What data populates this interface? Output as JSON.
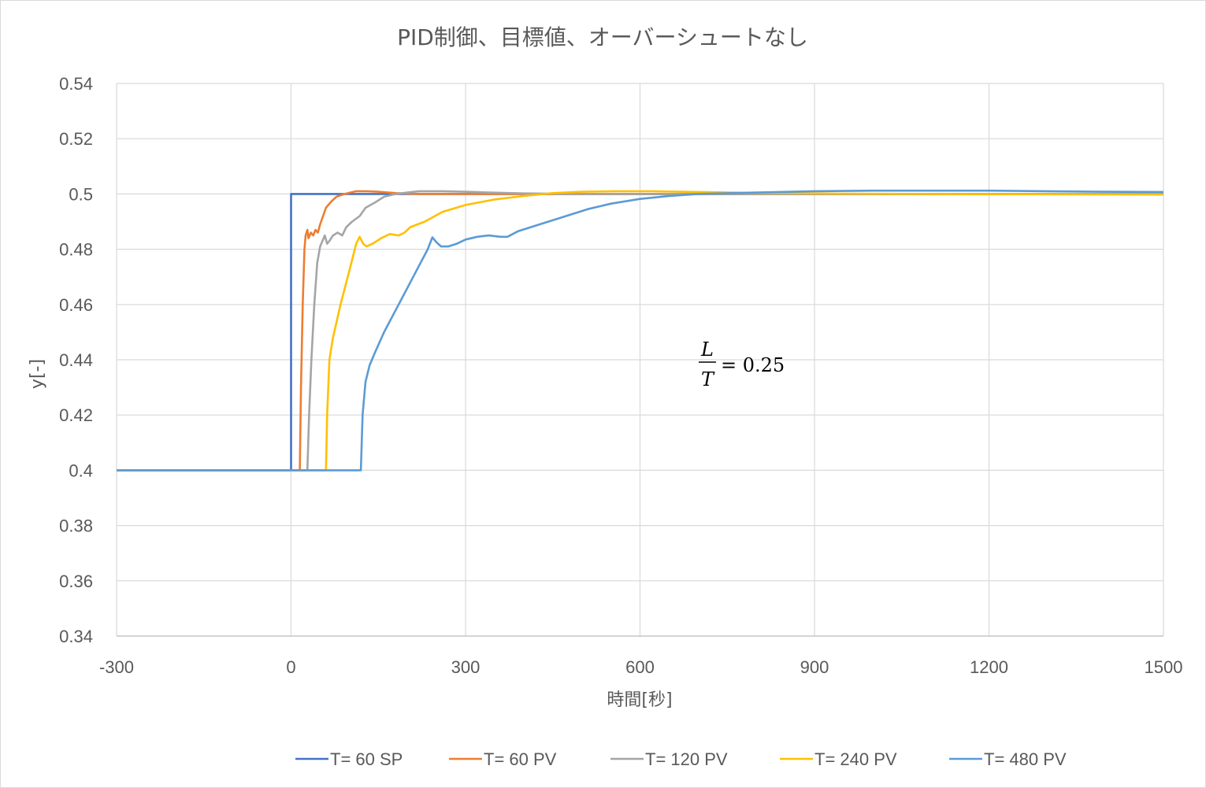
{
  "chart_data": {
    "type": "line",
    "title": "PID制御、目標値、オーバーシュートなし",
    "xlabel": "時間[秒]",
    "ylabel": "y[-]",
    "xlim": [
      -300,
      1500
    ],
    "ylim": [
      0.34,
      0.54
    ],
    "x_ticks": [
      -300,
      0,
      300,
      600,
      900,
      1200,
      1500
    ],
    "y_ticks": [
      0.34,
      0.36,
      0.38,
      0.4,
      0.42,
      0.44,
      0.46,
      0.48,
      0.5,
      0.52,
      0.54
    ],
    "x_tick_labels": [
      "-300",
      "0",
      "300",
      "600",
      "900",
      "1200",
      "1500"
    ],
    "y_tick_labels": [
      "0.34",
      "0.36",
      "0.38",
      "0.4",
      "0.42",
      "0.44",
      "0.46",
      "0.48",
      "0.5",
      "0.52",
      "0.54"
    ],
    "grid": true,
    "legend_position": "bottom",
    "annotation": {
      "numerator": "L",
      "denominator": "T",
      "rest": "= 0.25"
    },
    "series": [
      {
        "name": "T= 60 SP",
        "color": "#4472C4",
        "points": [
          [
            -300,
            0.4
          ],
          [
            0,
            0.4
          ],
          [
            0,
            0.5
          ],
          [
            1500,
            0.5
          ]
        ]
      },
      {
        "name": "T= 60 PV",
        "color": "#ED7D31",
        "points": [
          [
            -300,
            0.4
          ],
          [
            15,
            0.4
          ],
          [
            17,
            0.43
          ],
          [
            20,
            0.46
          ],
          [
            23,
            0.48
          ],
          [
            25,
            0.485
          ],
          [
            28,
            0.487
          ],
          [
            30,
            0.484
          ],
          [
            34,
            0.486
          ],
          [
            38,
            0.485
          ],
          [
            42,
            0.487
          ],
          [
            46,
            0.486
          ],
          [
            50,
            0.489
          ],
          [
            55,
            0.492
          ],
          [
            60,
            0.495
          ],
          [
            68,
            0.497
          ],
          [
            78,
            0.499
          ],
          [
            92,
            0.5
          ],
          [
            102,
            0.5005
          ],
          [
            112,
            0.501
          ],
          [
            130,
            0.501
          ],
          [
            150,
            0.5008
          ],
          [
            180,
            0.5003
          ],
          [
            220,
            0.5
          ],
          [
            1500,
            0.5
          ]
        ]
      },
      {
        "name": "T= 120 PV",
        "color": "#A5A5A5",
        "points": [
          [
            -300,
            0.4
          ],
          [
            28,
            0.4
          ],
          [
            31,
            0.42
          ],
          [
            35,
            0.44
          ],
          [
            40,
            0.46
          ],
          [
            45,
            0.475
          ],
          [
            50,
            0.481
          ],
          [
            58,
            0.485
          ],
          [
            62,
            0.482
          ],
          [
            66,
            0.483
          ],
          [
            72,
            0.485
          ],
          [
            80,
            0.486
          ],
          [
            88,
            0.485
          ],
          [
            95,
            0.488
          ],
          [
            105,
            0.49
          ],
          [
            118,
            0.492
          ],
          [
            128,
            0.495
          ],
          [
            145,
            0.497
          ],
          [
            160,
            0.499
          ],
          [
            180,
            0.5
          ],
          [
            200,
            0.5005
          ],
          [
            220,
            0.501
          ],
          [
            260,
            0.501
          ],
          [
            300,
            0.5008
          ],
          [
            340,
            0.5005
          ],
          [
            400,
            0.5002
          ],
          [
            500,
            0.5
          ],
          [
            1500,
            0.5
          ]
        ]
      },
      {
        "name": "T= 240 PV",
        "color": "#FFC000",
        "points": [
          [
            -300,
            0.4
          ],
          [
            60,
            0.4
          ],
          [
            62,
            0.42
          ],
          [
            66,
            0.44
          ],
          [
            72,
            0.448
          ],
          [
            85,
            0.46
          ],
          [
            100,
            0.472
          ],
          [
            112,
            0.482
          ],
          [
            118,
            0.4845
          ],
          [
            124,
            0.482
          ],
          [
            130,
            0.481
          ],
          [
            140,
            0.482
          ],
          [
            155,
            0.484
          ],
          [
            170,
            0.4855
          ],
          [
            185,
            0.485
          ],
          [
            195,
            0.486
          ],
          [
            205,
            0.488
          ],
          [
            230,
            0.49
          ],
          [
            260,
            0.4935
          ],
          [
            300,
            0.496
          ],
          [
            350,
            0.498
          ],
          [
            400,
            0.4993
          ],
          [
            450,
            0.5003
          ],
          [
            500,
            0.5008
          ],
          [
            560,
            0.501
          ],
          [
            620,
            0.501
          ],
          [
            700,
            0.5007
          ],
          [
            800,
            0.5004
          ],
          [
            950,
            0.5001
          ],
          [
            1100,
            0.5
          ],
          [
            1500,
            0.4998
          ]
        ]
      },
      {
        "name": "T= 480 PV",
        "color": "#5B9BD5",
        "points": [
          [
            -300,
            0.4
          ],
          [
            120,
            0.4
          ],
          [
            123,
            0.42
          ],
          [
            128,
            0.432
          ],
          [
            135,
            0.438
          ],
          [
            145,
            0.443
          ],
          [
            160,
            0.45
          ],
          [
            180,
            0.458
          ],
          [
            200,
            0.466
          ],
          [
            220,
            0.474
          ],
          [
            235,
            0.48
          ],
          [
            243,
            0.4843
          ],
          [
            250,
            0.4825
          ],
          [
            258,
            0.481
          ],
          [
            270,
            0.481
          ],
          [
            285,
            0.482
          ],
          [
            300,
            0.4835
          ],
          [
            320,
            0.4845
          ],
          [
            340,
            0.485
          ],
          [
            360,
            0.4845
          ],
          [
            372,
            0.4845
          ],
          [
            390,
            0.4865
          ],
          [
            420,
            0.4885
          ],
          [
            450,
            0.4905
          ],
          [
            480,
            0.4925
          ],
          [
            510,
            0.4945
          ],
          [
            550,
            0.4965
          ],
          [
            600,
            0.4982
          ],
          [
            650,
            0.4993
          ],
          [
            700,
            0.5
          ],
          [
            800,
            0.5005
          ],
          [
            900,
            0.501
          ],
          [
            1000,
            0.5012
          ],
          [
            1100,
            0.5012
          ],
          [
            1200,
            0.5012
          ],
          [
            1300,
            0.501
          ],
          [
            1400,
            0.5008
          ],
          [
            1500,
            0.5007
          ]
        ]
      }
    ]
  }
}
